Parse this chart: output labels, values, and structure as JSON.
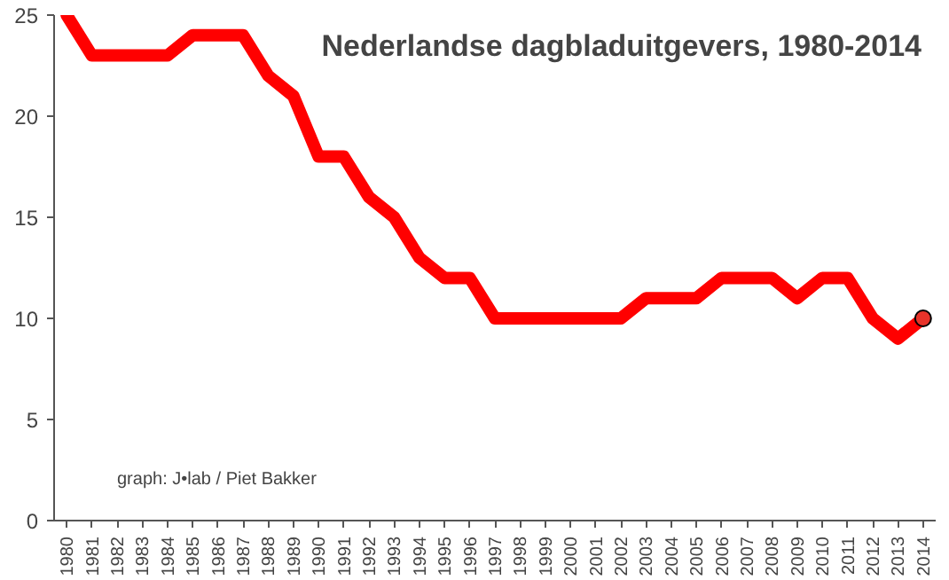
{
  "chart_data": {
    "type": "line",
    "title": "Nederlandse dagbladuitgevers, 1980-2014",
    "categories": [
      "1980",
      "1981",
      "1982",
      "1983",
      "1984",
      "1985",
      "1986",
      "1987",
      "1988",
      "1989",
      "1990",
      "1991",
      "1992",
      "1993",
      "1994",
      "1995",
      "1996",
      "1997",
      "1998",
      "1999",
      "2000",
      "2001",
      "2002",
      "2003",
      "2004",
      "2005",
      "2006",
      "2007",
      "2008",
      "2009",
      "2010",
      "2011",
      "2012",
      "2013",
      "2014"
    ],
    "series": [
      {
        "color": "#ff0000",
        "values": [
          25,
          23,
          23,
          23,
          23,
          24,
          24,
          24,
          22,
          21,
          18,
          18,
          16,
          15,
          13,
          12,
          12,
          10,
          10,
          10,
          10,
          10,
          10,
          11,
          11,
          11,
          12,
          12,
          12,
          11,
          12,
          12,
          10,
          9,
          10
        ]
      },
      {
        "type": "scatter",
        "color": "#e8332a",
        "values": [
          null,
          null,
          null,
          null,
          null,
          null,
          null,
          null,
          null,
          null,
          null,
          null,
          null,
          null,
          null,
          null,
          null,
          null,
          null,
          null,
          null,
          null,
          null,
          null,
          null,
          null,
          null,
          null,
          null,
          null,
          null,
          null,
          null,
          null,
          10
        ]
      }
    ],
    "ylim": [
      0,
      25
    ],
    "yticks": [
      0,
      5,
      10,
      15,
      20,
      25
    ],
    "grid": false,
    "annotations": [
      "graph: J•lab / Piet Bakker"
    ]
  }
}
